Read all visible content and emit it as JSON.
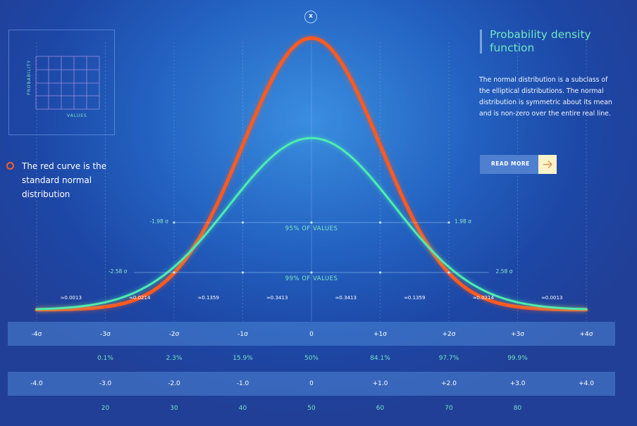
{
  "close_label": "x",
  "mini_chart": {
    "ylabel": "PROBABILITY",
    "xlabel": "VALUES"
  },
  "legend": {
    "text": "The red curve is the standard normal distribution"
  },
  "panel": {
    "title": "Probability density function",
    "description": "The normal distribution is a subclass of the elliptical distributions. The normal distribution is symmetric about its mean and is non-zero over the entire real line.",
    "button_label": "READ MORE"
  },
  "colors": {
    "red_curve": "#ff5a1f",
    "green_curve": "#4dedb0",
    "accent_text": "#6fe6c0"
  },
  "chart_data": {
    "type": "line",
    "x": [
      -4,
      -3,
      -2,
      -1,
      0,
      1,
      2,
      3,
      4
    ],
    "xlim": [
      -4,
      4
    ],
    "series": [
      {
        "values": [
          0.0013,
          0.0062,
          0.024,
          0.061,
          0.087,
          0.061,
          0.024,
          0.0062,
          0.0013
        ]
      },
      {
        "values": [
          0.0011,
          0.0045,
          0.017,
          0.04,
          0.055,
          0.04,
          0.017,
          0.0045,
          0.0011
        ]
      }
    ],
    "interval_annotations": [
      {
        "label": "95% OF VALUES",
        "low": "-1.98 σ",
        "high": "1.98 σ"
      },
      {
        "label": "99% OF VALUES",
        "low": "-2.58 σ",
        "high": "2.58 σ"
      }
    ],
    "segment_probabilities": [
      "≈0.0013",
      "≈0.0214",
      "≈0.1359",
      "≈0.3413",
      "≈0.3413",
      "≈0.1359",
      "≈0.0214",
      "≈0.0013"
    ],
    "sigma_labels": [
      "-4σ",
      "-3σ",
      "-2σ",
      "-1σ",
      "0",
      "+1σ",
      "+2σ",
      "+3σ",
      "+4σ"
    ],
    "cumulative_percent": [
      "",
      "0.1%",
      "2.3%",
      "15.9%",
      "50%",
      "84.1%",
      "97.7%",
      "99.9%",
      ""
    ],
    "z_scores": [
      "-4.0",
      "-3.0",
      "-2.0",
      "-1.0",
      "0",
      "+1.0",
      "+2.0",
      "+3.0",
      "+4.0"
    ],
    "t_scores": [
      "",
      "20",
      "30",
      "40",
      "50",
      "60",
      "70",
      "80",
      ""
    ]
  }
}
